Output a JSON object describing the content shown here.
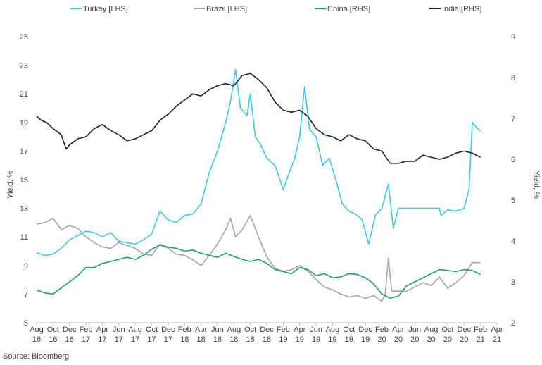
{
  "chart_data": {
    "type": "line",
    "title": "",
    "source": "Source: Bloomberg",
    "ylabel_left": "Yield, %",
    "ylabel_right": "Yield, %",
    "ylim_left": [
      5,
      25
    ],
    "ylim_right": [
      2,
      9
    ],
    "yticks_left": [
      5,
      7,
      9,
      11,
      13,
      15,
      17,
      19,
      21,
      23,
      25
    ],
    "yticks_right": [
      2,
      3,
      4,
      5,
      6,
      7,
      8,
      9
    ],
    "grid": false,
    "legend_position": "top",
    "x_ticks": [
      {
        "m": "Aug",
        "y": "16"
      },
      {
        "m": "Oct",
        "y": "16"
      },
      {
        "m": "Dec",
        "y": "16"
      },
      {
        "m": "Feb",
        "y": "17"
      },
      {
        "m": "Apr",
        "y": "17"
      },
      {
        "m": "Jun",
        "y": "17"
      },
      {
        "m": "Aug",
        "y": "17"
      },
      {
        "m": "Oct",
        "y": "17"
      },
      {
        "m": "Dec",
        "y": "17"
      },
      {
        "m": "Feb",
        "y": "18"
      },
      {
        "m": "Apr",
        "y": "18"
      },
      {
        "m": "Jun",
        "y": "18"
      },
      {
        "m": "Aug",
        "y": "18"
      },
      {
        "m": "Oct",
        "y": "18"
      },
      {
        "m": "Dec",
        "y": "18"
      },
      {
        "m": "Feb",
        "y": "19"
      },
      {
        "m": "Apr",
        "y": "19"
      },
      {
        "m": "Jun",
        "y": "19"
      },
      {
        "m": "Aug",
        "y": "19"
      },
      {
        "m": "Oct",
        "y": "19"
      },
      {
        "m": "Dec",
        "y": "19"
      },
      {
        "m": "Feb",
        "y": "20"
      },
      {
        "m": "Apr",
        "y": "20"
      },
      {
        "m": "Jun",
        "y": "20"
      },
      {
        "m": "Aug",
        "y": "20"
      },
      {
        "m": "Oct",
        "y": "20"
      },
      {
        "m": "Dec",
        "y": "20"
      },
      {
        "m": "Feb",
        "y": "21"
      },
      {
        "m": "Apr",
        "y": "21"
      }
    ],
    "series": [
      {
        "name": "Turkey [LHS]",
        "axis": "left",
        "color": "#3fc8ee",
        "points": [
          [
            0,
            9.9
          ],
          [
            0.5,
            9.7
          ],
          [
            1,
            9.8
          ],
          [
            1.5,
            10.2
          ],
          [
            2,
            10.8
          ],
          [
            2.5,
            11.1
          ],
          [
            3,
            11.4
          ],
          [
            3.5,
            11.3
          ],
          [
            4,
            11.0
          ],
          [
            4.5,
            11.3
          ],
          [
            5,
            10.7
          ],
          [
            5.5,
            10.6
          ],
          [
            6,
            10.5
          ],
          [
            6.5,
            10.8
          ],
          [
            7,
            11.2
          ],
          [
            7.5,
            12.8
          ],
          [
            8,
            12.2
          ],
          [
            8.5,
            12.0
          ],
          [
            9,
            12.5
          ],
          [
            9.5,
            12.6
          ],
          [
            10,
            13.3
          ],
          [
            10.5,
            15.5
          ],
          [
            11,
            17.0
          ],
          [
            11.5,
            19.0
          ],
          [
            11.8,
            20.5
          ],
          [
            12.1,
            22.7
          ],
          [
            12.4,
            20.0
          ],
          [
            12.8,
            19.5
          ],
          [
            13.0,
            21.0
          ],
          [
            13.3,
            18.0
          ],
          [
            13.6,
            17.5
          ],
          [
            14,
            16.5
          ],
          [
            14.5,
            16.0
          ],
          [
            15,
            14.3
          ],
          [
            15.3,
            15.3
          ],
          [
            15.7,
            16.5
          ],
          [
            16,
            18.0
          ],
          [
            16.3,
            21.5
          ],
          [
            16.6,
            18.5
          ],
          [
            17,
            18.0
          ],
          [
            17.4,
            16.0
          ],
          [
            17.8,
            16.5
          ],
          [
            18.2,
            15.0
          ],
          [
            18.6,
            13.3
          ],
          [
            19,
            12.8
          ],
          [
            19.4,
            12.6
          ],
          [
            19.8,
            12.2
          ],
          [
            20.2,
            10.5
          ],
          [
            20.6,
            12.5
          ],
          [
            21,
            13.0
          ],
          [
            21.4,
            14.7
          ],
          [
            21.7,
            11.6
          ],
          [
            22,
            13.0
          ],
          [
            23,
            13.0
          ],
          [
            24,
            13.0
          ],
          [
            24.5,
            13.0
          ],
          [
            24.6,
            12.5
          ],
          [
            25,
            12.9
          ],
          [
            25.5,
            12.8
          ],
          [
            26,
            13.0
          ],
          [
            26.3,
            14.3
          ],
          [
            26.5,
            19.0
          ],
          [
            26.8,
            18.6
          ],
          [
            27.0,
            18.4
          ]
        ]
      },
      {
        "name": "Brazil [LHS]",
        "axis": "left",
        "color": "#a5a5a5",
        "points": [
          [
            0,
            11.9
          ],
          [
            0.5,
            12.0
          ],
          [
            1,
            12.3
          ],
          [
            1.5,
            11.5
          ],
          [
            2,
            11.8
          ],
          [
            2.5,
            11.6
          ],
          [
            3,
            11.0
          ],
          [
            3.5,
            10.6
          ],
          [
            4,
            10.3
          ],
          [
            4.5,
            10.2
          ],
          [
            5,
            10.6
          ],
          [
            5.5,
            10.4
          ],
          [
            6,
            10.2
          ],
          [
            6.5,
            9.8
          ],
          [
            7,
            9.7
          ],
          [
            7.5,
            10.5
          ],
          [
            8,
            10.2
          ],
          [
            8.5,
            9.8
          ],
          [
            9,
            9.7
          ],
          [
            9.5,
            9.4
          ],
          [
            10,
            9.0
          ],
          [
            10.5,
            9.7
          ],
          [
            11,
            10.5
          ],
          [
            11.5,
            11.5
          ],
          [
            11.8,
            12.3
          ],
          [
            12.1,
            11.0
          ],
          [
            12.5,
            11.5
          ],
          [
            13,
            12.5
          ],
          [
            13.5,
            11.0
          ],
          [
            14,
            9.6
          ],
          [
            14.5,
            8.8
          ],
          [
            15,
            8.6
          ],
          [
            15.5,
            8.7
          ],
          [
            16,
            9.0
          ],
          [
            16.5,
            8.6
          ],
          [
            17,
            8.0
          ],
          [
            17.5,
            7.5
          ],
          [
            18,
            7.3
          ],
          [
            18.5,
            7.0
          ],
          [
            19,
            6.8
          ],
          [
            19.5,
            6.9
          ],
          [
            20,
            6.7
          ],
          [
            20.5,
            6.9
          ],
          [
            21,
            6.5
          ],
          [
            21.2,
            7.0
          ],
          [
            21.4,
            9.5
          ],
          [
            21.6,
            7.2
          ],
          [
            22,
            7.2
          ],
          [
            22.5,
            7.2
          ],
          [
            23,
            7.5
          ],
          [
            23.5,
            7.8
          ],
          [
            24,
            7.6
          ],
          [
            24.5,
            8.2
          ],
          [
            25,
            7.4
          ],
          [
            25.5,
            7.8
          ],
          [
            26,
            8.3
          ],
          [
            26.5,
            9.2
          ],
          [
            27.0,
            9.2
          ]
        ]
      },
      {
        "name": "China [RHS]",
        "axis": "right",
        "color": "#1f9e79",
        "points": [
          [
            0,
            2.8
          ],
          [
            0.5,
            2.73
          ],
          [
            1,
            2.7
          ],
          [
            1.5,
            2.85
          ],
          [
            2,
            3.0
          ],
          [
            2.5,
            3.15
          ],
          [
            3,
            3.35
          ],
          [
            3.5,
            3.35
          ],
          [
            4,
            3.45
          ],
          [
            4.5,
            3.5
          ],
          [
            5,
            3.55
          ],
          [
            5.5,
            3.6
          ],
          [
            6,
            3.55
          ],
          [
            6.5,
            3.65
          ],
          [
            7,
            3.8
          ],
          [
            7.5,
            3.9
          ],
          [
            8,
            3.85
          ],
          [
            8.5,
            3.82
          ],
          [
            9,
            3.75
          ],
          [
            9.5,
            3.78
          ],
          [
            10,
            3.7
          ],
          [
            10.5,
            3.65
          ],
          [
            11,
            3.6
          ],
          [
            11.5,
            3.7
          ],
          [
            12,
            3.62
          ],
          [
            12.5,
            3.55
          ],
          [
            13,
            3.5
          ],
          [
            13.5,
            3.55
          ],
          [
            14,
            3.45
          ],
          [
            14.5,
            3.3
          ],
          [
            15,
            3.25
          ],
          [
            15.5,
            3.2
          ],
          [
            16,
            3.35
          ],
          [
            16.5,
            3.3
          ],
          [
            17,
            3.15
          ],
          [
            17.5,
            3.2
          ],
          [
            18,
            3.1
          ],
          [
            18.5,
            3.12
          ],
          [
            19,
            3.2
          ],
          [
            19.5,
            3.18
          ],
          [
            20,
            3.1
          ],
          [
            20.5,
            2.95
          ],
          [
            21,
            2.7
          ],
          [
            21.5,
            2.6
          ],
          [
            22,
            2.65
          ],
          [
            22.5,
            2.9
          ],
          [
            23,
            3.0
          ],
          [
            23.5,
            3.1
          ],
          [
            24,
            3.2
          ],
          [
            24.5,
            3.3
          ],
          [
            25,
            3.28
          ],
          [
            25.5,
            3.25
          ],
          [
            26,
            3.3
          ],
          [
            26.5,
            3.28
          ],
          [
            27.0,
            3.18
          ]
        ]
      },
      {
        "name": "India [RHS]",
        "axis": "right",
        "color": "#17244d",
        "points": [
          [
            0,
            7.05
          ],
          [
            0.3,
            6.95
          ],
          [
            0.6,
            6.9
          ],
          [
            1,
            6.75
          ],
          [
            1.5,
            6.6
          ],
          [
            1.8,
            6.25
          ],
          [
            2.0,
            6.35
          ],
          [
            2.5,
            6.5
          ],
          [
            3,
            6.55
          ],
          [
            3.5,
            6.75
          ],
          [
            4,
            6.85
          ],
          [
            4.5,
            6.7
          ],
          [
            5,
            6.6
          ],
          [
            5.5,
            6.45
          ],
          [
            6,
            6.5
          ],
          [
            6.5,
            6.6
          ],
          [
            7,
            6.7
          ],
          [
            7.5,
            6.95
          ],
          [
            8,
            7.1
          ],
          [
            8.5,
            7.3
          ],
          [
            9,
            7.45
          ],
          [
            9.5,
            7.6
          ],
          [
            10,
            7.55
          ],
          [
            10.5,
            7.7
          ],
          [
            11,
            7.8
          ],
          [
            11.5,
            7.85
          ],
          [
            12,
            7.8
          ],
          [
            12.5,
            8.05
          ],
          [
            13,
            8.1
          ],
          [
            13.5,
            7.95
          ],
          [
            14,
            7.75
          ],
          [
            14.5,
            7.4
          ],
          [
            15,
            7.2
          ],
          [
            15.5,
            7.15
          ],
          [
            16,
            7.2
          ],
          [
            16.5,
            7.05
          ],
          [
            17,
            6.75
          ],
          [
            17.5,
            6.6
          ],
          [
            18,
            6.55
          ],
          [
            18.5,
            6.45
          ],
          [
            19,
            6.6
          ],
          [
            19.5,
            6.5
          ],
          [
            20,
            6.45
          ],
          [
            20.5,
            6.25
          ],
          [
            21,
            6.2
          ],
          [
            21.5,
            5.9
          ],
          [
            22,
            5.9
          ],
          [
            22.5,
            5.95
          ],
          [
            23,
            5.95
          ],
          [
            23.5,
            6.1
          ],
          [
            24,
            6.05
          ],
          [
            24.5,
            6.0
          ],
          [
            25,
            6.05
          ],
          [
            25.5,
            6.15
          ],
          [
            26,
            6.2
          ],
          [
            26.5,
            6.15
          ],
          [
            27.0,
            6.05
          ]
        ]
      }
    ]
  }
}
